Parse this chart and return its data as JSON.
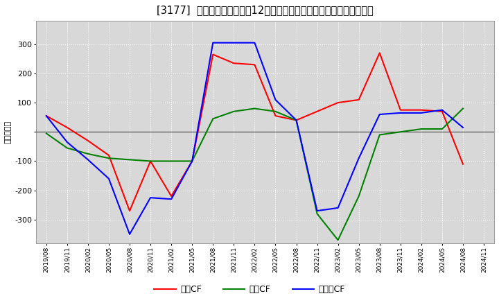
{
  "title": "[3177]  キャッシュフローの12か月移動合計の対前年同期増減額の推移",
  "ylabel": "（百万円）",
  "background_color": "#ffffff",
  "x_labels": [
    "2019/08",
    "2019/11",
    "2020/02",
    "2020/05",
    "2020/08",
    "2020/11",
    "2021/02",
    "2021/05",
    "2021/08",
    "2021/11",
    "2022/02",
    "2022/05",
    "2022/08",
    "2022/11",
    "2023/02",
    "2023/05",
    "2023/08",
    "2023/11",
    "2024/02",
    "2024/05",
    "2024/08",
    "2024/11"
  ],
  "eigyo_cf": [
    55,
    15,
    -30,
    -80,
    -270,
    -100,
    -220,
    -100,
    265,
    235,
    230,
    55,
    40,
    70,
    100,
    110,
    270,
    75,
    75,
    70,
    -110,
    null
  ],
  "toshi_cf": [
    -5,
    -55,
    -75,
    -90,
    -95,
    -100,
    -100,
    -100,
    45,
    70,
    80,
    70,
    40,
    -280,
    -370,
    -220,
    -10,
    0,
    10,
    10,
    80,
    null
  ],
  "free_cf": [
    55,
    -35,
    -95,
    -160,
    -350,
    -225,
    -230,
    -100,
    305,
    305,
    305,
    110,
    40,
    -270,
    -260,
    -90,
    60,
    65,
    65,
    75,
    15,
    null
  ],
  "ylim": [
    -380,
    380
  ],
  "yticks": [
    -300,
    -200,
    -100,
    0,
    100,
    200,
    300
  ],
  "line_colors": {
    "eigyo": "#ff0000",
    "toshi": "#008000",
    "free": "#0000ff"
  },
  "legend_labels": {
    "eigyo": "営業CF",
    "toshi": "投資CF",
    "free": "フリーCF"
  }
}
